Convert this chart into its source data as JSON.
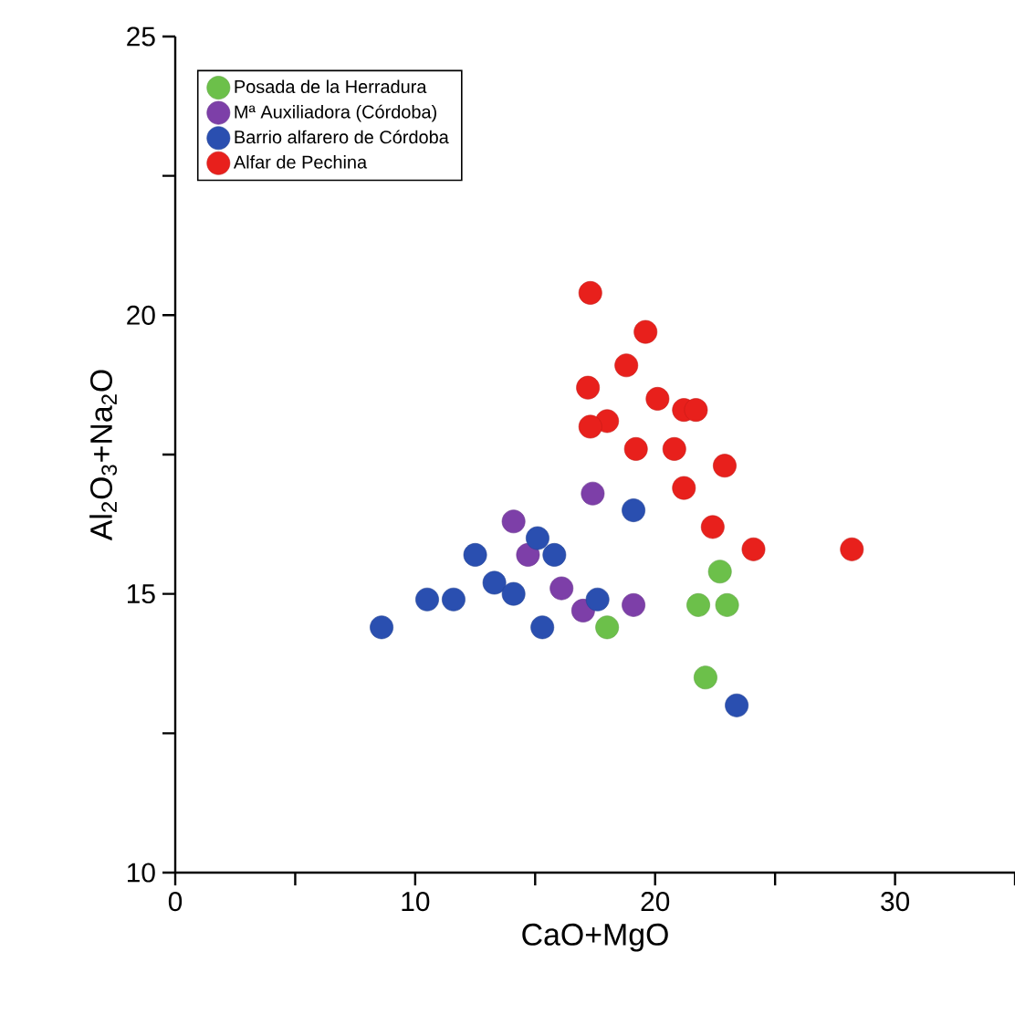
{
  "chart_data": {
    "type": "scatter",
    "xlabel": "CaO+MgO",
    "ylabel": "Al$_{2}$O$_{3}$+Na$_{2}$O",
    "xlim": [
      0,
      35
    ],
    "ylim": [
      10,
      25
    ],
    "xticks": [
      0,
      {
        "value": 5,
        "label": null
      },
      10,
      {
        "value": 15,
        "label": null
      },
      20,
      {
        "value": 25,
        "label": null
      },
      30,
      {
        "value": 35,
        "label": null
      }
    ],
    "yticks": [
      10,
      {
        "value": 12.5,
        "label": null
      },
      15,
      {
        "value": 17.5,
        "label": null
      },
      20,
      {
        "value": 22.5,
        "label": null
      },
      25
    ],
    "marker": "circle",
    "legend": "top left",
    "grid": false,
    "series": [
      {
        "name": "Posada de la Herradura",
        "color": "#6cc04a",
        "x": [
          22.7,
          21.8,
          23.0,
          18.0,
          22.1
        ],
        "values": [
          15.4,
          14.8,
          14.8,
          14.4,
          13.5
        ]
      },
      {
        "name": "Mª Auxiliadora (Córdoba)",
        "color": "#7d3fa8",
        "x": [
          17.4,
          14.1,
          14.7,
          16.1,
          17.0,
          19.1
        ],
        "values": [
          16.8,
          16.3,
          15.7,
          15.1,
          14.7,
          14.8
        ]
      },
      {
        "name": "Barrio alfarero de Córdoba",
        "color": "#2a4fb0",
        "x": [
          19.1,
          15.1,
          12.5,
          15.8,
          13.3,
          14.1,
          10.5,
          11.6,
          17.6,
          8.6,
          15.3,
          23.4
        ],
        "values": [
          16.5,
          16.0,
          15.7,
          15.7,
          15.2,
          15.0,
          14.9,
          14.9,
          14.9,
          14.4,
          14.4,
          13.0
        ]
      },
      {
        "name": "Alfar de Pechina",
        "color": "#e8201c",
        "x": [
          17.3,
          19.6,
          18.8,
          17.2,
          20.1,
          21.2,
          21.7,
          18.0,
          17.3,
          19.2,
          20.8,
          22.9,
          21.2,
          22.4,
          24.1,
          28.2
        ],
        "values": [
          20.4,
          19.7,
          19.1,
          18.7,
          18.5,
          18.3,
          18.3,
          18.1,
          18.0,
          17.6,
          17.6,
          17.3,
          16.9,
          16.2,
          15.8,
          15.8
        ]
      }
    ]
  }
}
